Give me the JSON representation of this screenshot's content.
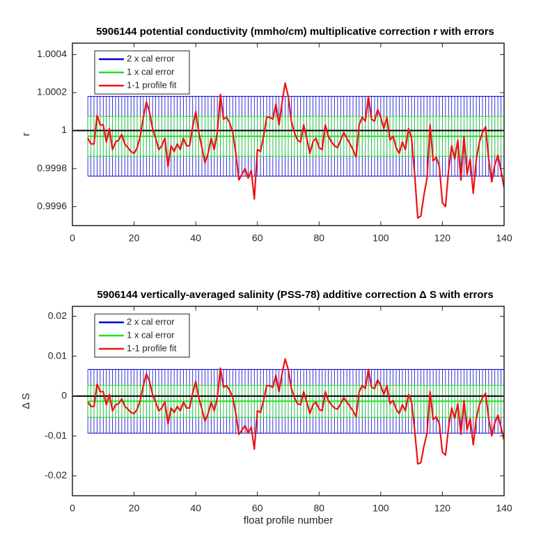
{
  "chart_data": [
    {
      "type": "errorline",
      "title": "5906144 potential conductivity (mmho/cm) multiplicative correction r with errors",
      "ylabel": "r",
      "xlim": [
        0,
        140
      ],
      "xticks": [
        0,
        20,
        40,
        60,
        80,
        100,
        120,
        140
      ],
      "ylim": [
        0.9995,
        1.00046
      ],
      "yticks": [
        0.9996,
        0.9998,
        1,
        1.0002,
        1.0004
      ],
      "legend": "upper left",
      "reference": 1,
      "x": [
        5,
        6,
        7,
        8,
        9,
        10,
        11,
        12,
        13,
        14,
        15,
        16,
        17,
        18,
        19,
        20,
        21,
        22,
        23,
        24,
        25,
        26,
        27,
        28,
        29,
        30,
        31,
        32,
        33,
        34,
        35,
        36,
        37,
        38,
        39,
        40,
        41,
        42,
        43,
        44,
        45,
        46,
        47,
        48,
        49,
        50,
        51,
        52,
        53,
        54,
        55,
        56,
        57,
        58,
        59,
        60,
        61,
        62,
        63,
        64,
        65,
        66,
        67,
        68,
        69,
        70,
        71,
        72,
        73,
        74,
        75,
        76,
        77,
        78,
        79,
        80,
        81,
        82,
        83,
        84,
        85,
        86,
        87,
        88,
        89,
        90,
        91,
        92,
        93,
        94,
        95,
        96,
        97,
        98,
        99,
        100,
        101,
        102,
        103,
        104,
        105,
        106,
        107,
        108,
        109,
        110,
        111,
        112,
        113,
        114,
        115,
        116,
        117,
        118,
        119,
        120,
        121,
        122,
        123,
        124,
        125,
        126,
        127,
        128,
        129,
        130,
        131,
        132,
        133,
        134,
        135,
        136,
        137,
        138,
        139,
        140
      ],
      "series": [
        {
          "name": "2 x cal error",
          "color": "#0000cc",
          "center": 0.99997,
          "error": 0.00021
        },
        {
          "name": "1 x cal error",
          "color": "#22e022",
          "center": 0.99997,
          "error": 0.000105
        },
        {
          "name": "1-1 profile fit",
          "color": "#ee1111",
          "values": [
            0.99996,
            0.99993,
            0.99993,
            1.00008,
            1.00003,
            1.00003,
            0.99994,
            1.00001,
            0.9999,
            0.99994,
            0.99995,
            0.99998,
            0.99993,
            0.99991,
            0.99989,
            0.99988,
            0.99991,
            0.99997,
            1.00007,
            1.00015,
            1.0001,
            1.00001,
            0.99996,
            0.9999,
            0.99992,
            0.99996,
            0.99981,
            0.99992,
            0.99989,
            0.99993,
            0.9999,
            0.99996,
            0.99992,
            0.99992,
            1.00002,
            1.0001,
            0.99999,
            0.99991,
            0.99983,
            0.99988,
            0.99996,
            0.9999,
            0.99999,
            1.00019,
            1.00006,
            1.00007,
            1.00004,
            0.99999,
            0.99988,
            0.99974,
            0.99977,
            0.9998,
            0.99975,
            0.99979,
            0.99964,
            0.9999,
            0.99989,
            0.99997,
            1.00007,
            1.00007,
            1.00006,
            1.00014,
            1.00003,
            1.00015,
            1.00025,
            1.00018,
            1.00005,
            0.99999,
            0.99995,
            0.99994,
            1.00003,
            0.99996,
            0.99988,
            0.99994,
            0.99996,
            0.99991,
            0.9999,
            1.00003,
            0.99997,
            0.99994,
            0.99992,
            0.99991,
            0.99995,
            0.99999,
            0.99996,
            0.99993,
            0.9999,
            0.99986,
            1.00003,
            1.00007,
            1.00005,
            1.00018,
            1.00006,
            1.00005,
            1.00011,
            1.00007,
            1.00001,
            1.00007,
            0.99995,
            0.99997,
            0.99991,
            0.99988,
            0.99994,
            0.9999,
            1.00001,
            0.99996,
            0.99977,
            0.99954,
            0.99955,
            0.99966,
            0.99975,
            1.00003,
            0.99984,
            0.99986,
            0.99981,
            0.99962,
            0.9996,
            0.99979,
            0.99992,
            0.99985,
            0.99995,
            0.99974,
            0.99997,
            0.99977,
            0.99985,
            0.99967,
            0.99985,
            0.99994,
            0.99999,
            1.00002,
            0.99985,
            0.99973,
            0.99982,
            0.99987,
            0.99979,
            0.9997
          ]
        }
      ]
    },
    {
      "type": "errorline",
      "title": "5906144 vertically-averaged salinity (PSS-78) additive correction Δ S with errors",
      "ylabel": "Δ S",
      "xlabel": "float profile number",
      "xlim": [
        0,
        140
      ],
      "xticks": [
        0,
        20,
        40,
        60,
        80,
        100,
        120,
        140
      ],
      "ylim": [
        -0.025,
        0.0225
      ],
      "yticks": [
        -0.02,
        -0.01,
        0,
        0.01,
        0.02
      ],
      "legend": "upper left",
      "reference": 0,
      "x": [
        5,
        6,
        7,
        8,
        9,
        10,
        11,
        12,
        13,
        14,
        15,
        16,
        17,
        18,
        19,
        20,
        21,
        22,
        23,
        24,
        25,
        26,
        27,
        28,
        29,
        30,
        31,
        32,
        33,
        34,
        35,
        36,
        37,
        38,
        39,
        40,
        41,
        42,
        43,
        44,
        45,
        46,
        47,
        48,
        49,
        50,
        51,
        52,
        53,
        54,
        55,
        56,
        57,
        58,
        59,
        60,
        61,
        62,
        63,
        64,
        65,
        66,
        67,
        68,
        69,
        70,
        71,
        72,
        73,
        74,
        75,
        76,
        77,
        78,
        79,
        80,
        81,
        82,
        83,
        84,
        85,
        86,
        87,
        88,
        89,
        90,
        91,
        92,
        93,
        94,
        95,
        96,
        97,
        98,
        99,
        100,
        101,
        102,
        103,
        104,
        105,
        106,
        107,
        108,
        109,
        110,
        111,
        112,
        113,
        114,
        115,
        116,
        117,
        118,
        119,
        120,
        121,
        122,
        123,
        124,
        125,
        126,
        127,
        128,
        129,
        130,
        131,
        132,
        133,
        134,
        135,
        136,
        137,
        138,
        139,
        140
      ],
      "series": [
        {
          "name": "2 x cal error",
          "color": "#0000cc",
          "center": -0.0013,
          "error": 0.008
        },
        {
          "name": "1 x cal error",
          "color": "#22e022",
          "center": -0.0013,
          "error": 0.004
        },
        {
          "name": "1-1 profile fit",
          "color": "#ee1111",
          "values": [
            -0.0015,
            -0.0026,
            -0.0026,
            0.003,
            0.0011,
            0.0011,
            -0.0022,
            0.0004,
            -0.0037,
            -0.0022,
            -0.0019,
            -0.0007,
            -0.0026,
            -0.0033,
            -0.0041,
            -0.0044,
            -0.0033,
            -0.0011,
            0.0026,
            0.0056,
            0.0037,
            0.0004,
            -0.0015,
            -0.0037,
            -0.003,
            -0.0015,
            -0.007,
            -0.003,
            -0.0041,
            -0.0026,
            -0.0037,
            -0.0015,
            -0.003,
            -0.003,
            0.0007,
            0.0037,
            -0.0004,
            -0.0033,
            -0.0063,
            -0.0044,
            -0.0015,
            -0.0037,
            -0.0004,
            0.007,
            0.0022,
            0.0026,
            0.0015,
            -0.0004,
            -0.0044,
            -0.0096,
            -0.0085,
            -0.0074,
            -0.0093,
            -0.0078,
            -0.0133,
            -0.0037,
            -0.0041,
            -0.0011,
            0.0026,
            0.0026,
            0.0022,
            0.0052,
            0.0011,
            0.0056,
            0.0093,
            0.0067,
            0.0019,
            -0.0004,
            -0.0019,
            -0.0022,
            0.0011,
            -0.0015,
            -0.0044,
            -0.0022,
            -0.0015,
            -0.0033,
            -0.0037,
            0.0011,
            -0.0011,
            -0.0022,
            -0.003,
            -0.0033,
            -0.0019,
            -0.0004,
            -0.0015,
            -0.0026,
            -0.0037,
            -0.0052,
            0.0011,
            0.0026,
            0.0019,
            0.0067,
            0.0022,
            0.0019,
            0.0041,
            0.0026,
            0.0004,
            0.0026,
            -0.0019,
            -0.0011,
            -0.0033,
            -0.0044,
            -0.0022,
            -0.0037,
            0.0004,
            -0.0015,
            -0.0085,
            -0.017,
            -0.0167,
            -0.0126,
            -0.0093,
            0.0011,
            -0.0059,
            -0.0052,
            -0.007,
            -0.0141,
            -0.0148,
            -0.0078,
            -0.003,
            -0.0056,
            -0.0019,
            -0.0096,
            -0.0011,
            -0.0085,
            -0.0056,
            -0.0122,
            -0.0056,
            -0.0022,
            -0.0004,
            0.0007,
            -0.0056,
            -0.01,
            -0.0067,
            -0.0048,
            -0.0078,
            -0.0111
          ]
        }
      ]
    }
  ]
}
